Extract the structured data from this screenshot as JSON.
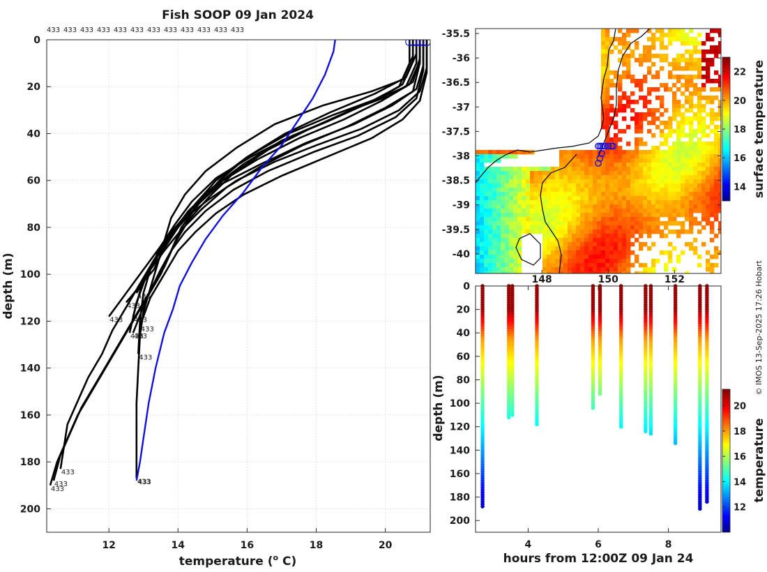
{
  "chart_data": [
    {
      "type": "line",
      "title": "Fish SOOP 09 Jan 2024",
      "xlabel": "temperature (",
      "xlabel_sup": "o",
      "xlabel_unit": " C)",
      "ylabel": "depth (m)",
      "xlim": [
        10.2,
        21.3
      ],
      "ylim": [
        0,
        210
      ],
      "y_reversed": true,
      "xticks": [
        12,
        14,
        16,
        18,
        20
      ],
      "yticks": [
        0,
        20,
        40,
        60,
        80,
        100,
        120,
        140,
        160,
        180,
        200
      ],
      "grid": true,
      "station_id": "433",
      "top_labels": [
        "433",
        "433",
        "433",
        "433",
        "433",
        "433",
        "433",
        "433",
        "433",
        "433",
        "433",
        "433"
      ],
      "profile_color": "#000000",
      "mean_color": "#1010dd",
      "series_mean": {
        "name": "mean profile",
        "x": [
          18.55,
          18.5,
          18.25,
          17.9,
          17.45,
          17.0,
          16.4,
          15.9,
          15.3,
          14.8,
          14.4,
          14.05,
          13.85,
          13.6,
          13.35,
          13.15,
          13.0,
          12.9,
          12.8
        ],
        "y": [
          0,
          5,
          15,
          25,
          35,
          45,
          55,
          65,
          75,
          85,
          95,
          105,
          115,
          125,
          140,
          155,
          170,
          180,
          188
        ]
      },
      "series": [
        {
          "name": "profile 1",
          "x": [
            20.9,
            20.9,
            20.6,
            19.8,
            18.5,
            17.2,
            16.0,
            15.2,
            14.6,
            14.1,
            13.8,
            13.5,
            13.1,
            12.7,
            12.3,
            11.9,
            11.5,
            11.1,
            10.8,
            10.5,
            10.3
          ],
          "y": [
            0,
            10,
            20,
            25,
            32,
            40,
            50,
            60,
            70,
            80,
            90,
            100,
            110,
            120,
            130,
            140,
            150,
            160,
            170,
            180,
            190
          ],
          "end_label": "433"
        },
        {
          "name": "profile 2",
          "x": [
            21.0,
            21.0,
            20.8,
            20.1,
            19.0,
            17.8,
            16.6,
            15.6,
            14.9,
            14.3,
            13.9,
            13.6,
            13.2,
            12.8,
            12.4,
            12.0,
            11.6,
            11.2,
            10.9,
            10.6,
            10.4
          ],
          "y": [
            0,
            8,
            18,
            24,
            30,
            38,
            47,
            57,
            67,
            77,
            87,
            97,
            107,
            117,
            127,
            137,
            147,
            157,
            167,
            177,
            188
          ],
          "end_label": "433"
        },
        {
          "name": "profile 3",
          "x": [
            21.2,
            21.2,
            21.0,
            20.4,
            19.3,
            18.0,
            16.8,
            15.7,
            14.9,
            14.2,
            13.7,
            13.3,
            12.9,
            12.5,
            12.1,
            11.8,
            11.4,
            11.1,
            10.8,
            10.6
          ],
          "y": [
            0,
            12,
            22,
            30,
            38,
            45,
            52,
            60,
            68,
            76,
            85,
            94,
            104,
            114,
            124,
            134,
            144,
            154,
            164,
            183
          ],
          "end_label": "433"
        },
        {
          "name": "profile 4",
          "x": [
            20.8,
            20.8,
            20.5,
            19.6,
            18.2,
            16.8,
            15.7,
            14.8,
            14.2,
            13.8,
            13.6,
            13.4,
            13.2,
            13.0,
            12.9,
            12.85,
            12.8,
            12.8,
            12.8,
            12.8
          ],
          "y": [
            0,
            7,
            17,
            22,
            28,
            36,
            46,
            56,
            66,
            76,
            86,
            96,
            106,
            116,
            126,
            140,
            155,
            170,
            180,
            187
          ],
          "end_label": "433"
        },
        {
          "name": "profile 5",
          "x": [
            21.0,
            21.0,
            20.7,
            19.9,
            18.8,
            17.5,
            16.3,
            15.3,
            14.6,
            14.0,
            13.5,
            13.1,
            12.8,
            12.6
          ],
          "y": [
            0,
            9,
            19,
            26,
            34,
            42,
            51,
            60,
            70,
            80,
            90,
            100,
            112,
            125
          ],
          "end_label": "433"
        },
        {
          "name": "profile 6",
          "x": [
            20.7,
            20.7,
            20.4,
            19.5,
            18.3,
            17.0,
            15.9,
            15.0,
            14.3,
            13.8,
            13.4,
            13.0,
            12.7
          ],
          "y": [
            0,
            10,
            20,
            27,
            35,
            43,
            53,
            63,
            73,
            83,
            92,
            102,
            118
          ],
          "end_label": "433"
        },
        {
          "name": "profile 7",
          "x": [
            21.1,
            21.1,
            20.9,
            20.2,
            19.1,
            17.7,
            16.4,
            15.2,
            14.4,
            13.8,
            13.3,
            12.8,
            12.3,
            12.0
          ],
          "y": [
            0,
            11,
            21,
            28,
            36,
            44,
            53,
            62,
            72,
            82,
            92,
            102,
            112,
            118
          ],
          "end_label": "433"
        },
        {
          "name": "profile 8",
          "x": [
            20.9,
            20.9,
            20.6,
            19.7,
            18.4,
            17.1,
            16.0,
            15.1,
            14.5,
            14.0,
            13.6,
            13.3,
            12.9,
            12.5
          ],
          "y": [
            0,
            6,
            16,
            23,
            31,
            40,
            50,
            60,
            70,
            80,
            89,
            98,
            105,
            112
          ],
          "end_label": "433"
        },
        {
          "name": "profile 9",
          "x": [
            21.0,
            21.0,
            20.8,
            20.0,
            18.9,
            17.6,
            16.4,
            15.4,
            14.7,
            14.1,
            13.6,
            13.2,
            12.8
          ],
          "y": [
            0,
            10,
            22,
            29,
            37,
            45,
            54,
            63,
            72,
            81,
            90,
            98,
            108
          ],
          "end_label": "433"
        },
        {
          "name": "profile 10",
          "x": [
            20.8,
            20.8,
            20.5,
            19.8,
            18.6,
            17.3,
            16.1,
            15.1,
            14.4,
            13.9,
            13.5,
            13.2,
            13.0,
            12.9,
            12.85
          ],
          "y": [
            0,
            9,
            19,
            25,
            33,
            41,
            50,
            59,
            69,
            79,
            88,
            98,
            108,
            120,
            134
          ],
          "end_label": "433"
        },
        {
          "name": "profile 11",
          "x": [
            21.1,
            21.1,
            20.9,
            20.3,
            19.2,
            17.9,
            16.6,
            15.6,
            14.8,
            14.2,
            13.8,
            13.5,
            13.1,
            12.7
          ],
          "y": [
            0,
            13,
            25,
            33,
            41,
            48,
            56,
            64,
            73,
            82,
            90,
            98,
            110,
            125
          ],
          "end_label": "433"
        },
        {
          "name": "profile 12",
          "x": [
            21.2,
            21.2,
            21.0,
            20.5,
            19.6,
            18.3,
            17.0,
            15.9,
            15.1,
            14.5,
            14.0,
            13.6,
            13.2,
            12.9
          ],
          "y": [
            0,
            14,
            26,
            34,
            42,
            50,
            58,
            66,
            74,
            82,
            90,
            100,
            110,
            122
          ],
          "end_label": "433"
        }
      ]
    },
    {
      "type": "heatmap",
      "subtype": "map",
      "xlim": [
        146.0,
        153.4
      ],
      "ylim": [
        -40.4,
        -35.4
      ],
      "yticks": [
        "-35.5",
        "-36",
        "-36.5",
        "-37",
        "-37.5",
        "-38",
        "-38.5",
        "-39",
        "-39.5",
        "-40"
      ],
      "xticks": [
        "148",
        "150",
        "152"
      ],
      "colorbar": {
        "label": "surface temperature",
        "min": 13.0,
        "max": 23.0,
        "ticks": [
          "14",
          "16",
          "18",
          "20",
          "22"
        ]
      },
      "track_lon": [
        149.7,
        149.75,
        149.8,
        149.85,
        149.9,
        150.0,
        150.1,
        150.15,
        149.8,
        149.75,
        149.7
      ],
      "track_lat": [
        -37.8,
        -37.8,
        -37.8,
        -37.8,
        -37.8,
        -37.8,
        -37.8,
        -37.8,
        -37.95,
        -38.05,
        -38.15
      ]
    },
    {
      "type": "scatter",
      "xlabel": "hours from 12:00Z 09 Jan 24",
      "ylabel": "depth (m)",
      "xlim": [
        2.5,
        9.5
      ],
      "ylim": [
        0,
        210
      ],
      "y_reversed": true,
      "xticks": [
        "4",
        "6",
        "8"
      ],
      "yticks": [
        "0",
        "20",
        "40",
        "60",
        "80",
        "100",
        "120",
        "140",
        "160",
        "180",
        "200"
      ],
      "colorbar": {
        "label": "temperature",
        "min": 10.0,
        "max": 21.3,
        "ticks": [
          "12",
          "14",
          "16",
          "18",
          "20"
        ]
      },
      "casts": [
        {
          "t": 2.7,
          "max_depth": 188
        },
        {
          "t": 3.45,
          "max_depth": 112
        },
        {
          "t": 3.55,
          "max_depth": 110
        },
        {
          "t": 4.25,
          "max_depth": 118
        },
        {
          "t": 5.85,
          "max_depth": 105
        },
        {
          "t": 6.05,
          "max_depth": 92
        },
        {
          "t": 6.65,
          "max_depth": 120
        },
        {
          "t": 7.35,
          "max_depth": 125
        },
        {
          "t": 7.5,
          "max_depth": 126
        },
        {
          "t": 8.2,
          "max_depth": 134
        },
        {
          "t": 8.9,
          "max_depth": 190
        },
        {
          "t": 9.1,
          "max_depth": 185
        }
      ]
    }
  ],
  "credit": "© IMOS 13-Sep-2025 17:26 Hobart"
}
